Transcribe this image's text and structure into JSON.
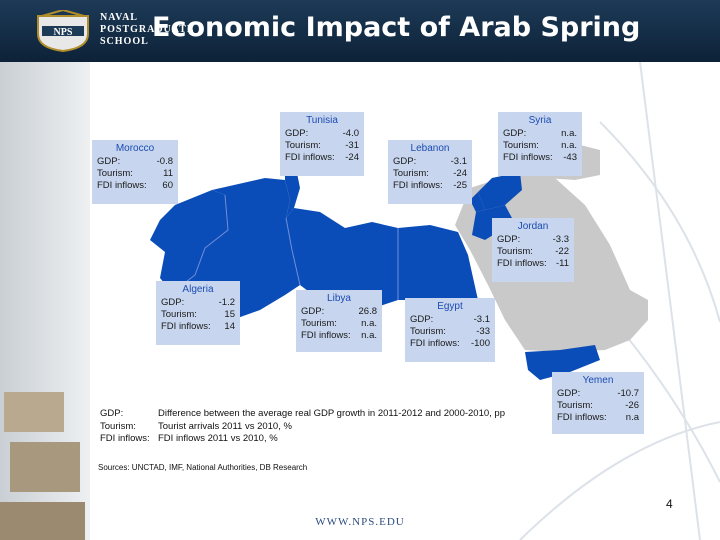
{
  "header": {
    "logo_lines": [
      "NAVAL",
      "POSTGRADUATE",
      "SCHOOL"
    ],
    "logo_badge": "NPS",
    "title": "Economic Impact of Arab Spring"
  },
  "colors": {
    "affected": "#0b4db8",
    "other": "#c9c9c9",
    "box": "#c7d6ee",
    "box_title": "#1b4bb3",
    "header": "#102a44"
  },
  "countries": [
    {
      "name": "Morocco",
      "rows": [
        {
          "k": "GDP:",
          "v": "-0.8"
        },
        {
          "k": "Tourism:",
          "v": "11"
        },
        {
          "k": "FDI inflows:",
          "v": "60"
        }
      ]
    },
    {
      "name": "Tunisia",
      "rows": [
        {
          "k": "GDP:",
          "v": "-4.0"
        },
        {
          "k": "Tourism:",
          "v": "-31"
        },
        {
          "k": "FDI inflows:",
          "v": "-24"
        }
      ]
    },
    {
      "name": "Lebanon",
      "rows": [
        {
          "k": "GDP:",
          "v": "-3.1"
        },
        {
          "k": "Tourism:",
          "v": "-24"
        },
        {
          "k": "FDI inflows:",
          "v": "-25"
        }
      ]
    },
    {
      "name": "Syria",
      "rows": [
        {
          "k": "GDP:",
          "v": "n.a."
        },
        {
          "k": "Tourism:",
          "v": "n.a."
        },
        {
          "k": "FDI inflows:",
          "v": "-43"
        }
      ]
    },
    {
      "name": "Jordan",
      "rows": [
        {
          "k": "GDP:",
          "v": "-3.3"
        },
        {
          "k": "Tourism:",
          "v": "-22"
        },
        {
          "k": "FDI inflows:",
          "v": "-11"
        }
      ]
    },
    {
      "name": "Algeria",
      "rows": [
        {
          "k": "GDP:",
          "v": "-1.2"
        },
        {
          "k": "Tourism:",
          "v": "15"
        },
        {
          "k": "FDI inflows:",
          "v": "14"
        }
      ]
    },
    {
      "name": "Libya",
      "rows": [
        {
          "k": "GDP:",
          "v": "26.8"
        },
        {
          "k": "Tourism:",
          "v": "n.a."
        },
        {
          "k": "FDI inflows:",
          "v": "n.a."
        }
      ]
    },
    {
      "name": "Egypt",
      "rows": [
        {
          "k": "GDP:",
          "v": "-3.1"
        },
        {
          "k": "Tourism:",
          "v": "-33"
        },
        {
          "k": "FDI inflows:",
          "v": "-100"
        }
      ]
    },
    {
      "name": "Yemen",
      "rows": [
        {
          "k": "GDP:",
          "v": "-10.7"
        },
        {
          "k": "Tourism:",
          "v": "-26"
        },
        {
          "k": "FDI inflows:",
          "v": "n.a"
        }
      ]
    }
  ],
  "legend": [
    {
      "k": "GDP:",
      "v": "Difference between the average real GDP growth in 2011-2012 and 2000-2010, pp"
    },
    {
      "k": "Tourism:",
      "v": "Tourist arrivals 2011 vs 2010, %"
    },
    {
      "k": "FDI inflows:",
      "v": "FDI inflows 2011 vs 2010, %"
    }
  ],
  "sources": "Sources: UNCTAD, IMF, National Authorities, DB Research",
  "page_number": "4",
  "footer": "WWW.NPS.EDU"
}
